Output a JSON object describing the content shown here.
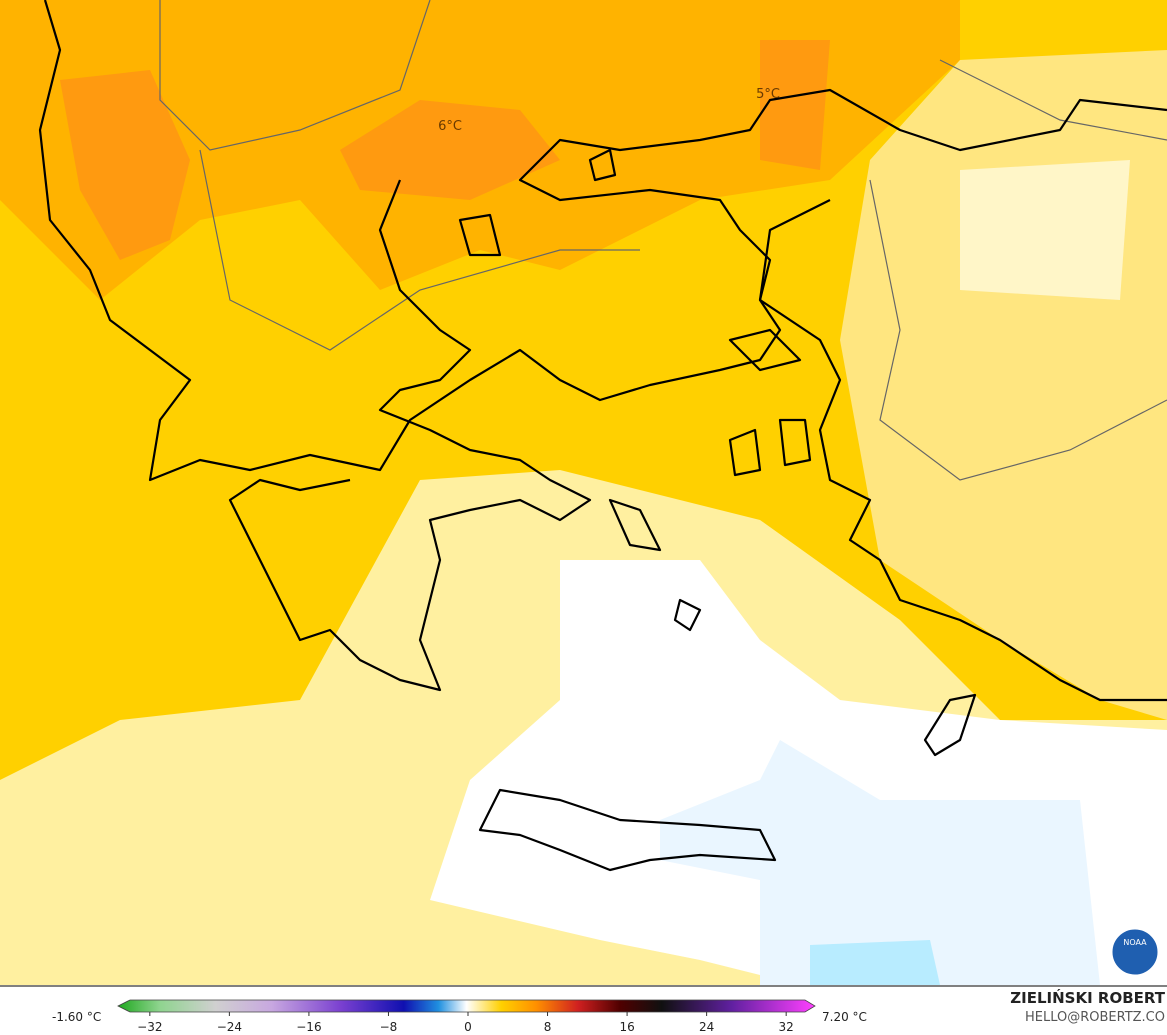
{
  "map_data": {
    "labels": [
      {
        "text": "6°C"
      },
      {
        "text": "5°C"
      }
    ],
    "colorbar": {
      "min_label": "-1.60 °C",
      "max_label": "7.20 °C",
      "lim": [
        -35,
        35
      ],
      "ticks": [
        {
          "value": -32,
          "label": "−32"
        },
        {
          "value": -24,
          "label": "−24"
        },
        {
          "value": -16,
          "label": "−16"
        },
        {
          "value": -8,
          "label": "−8"
        },
        0,
        8,
        16,
        24,
        32
      ]
    },
    "credit": {
      "name": "ZIELIŃSKI ROBERT",
      "email": "HELLO@ROBERTZ.CO",
      "logo": "NOAA"
    }
  }
}
